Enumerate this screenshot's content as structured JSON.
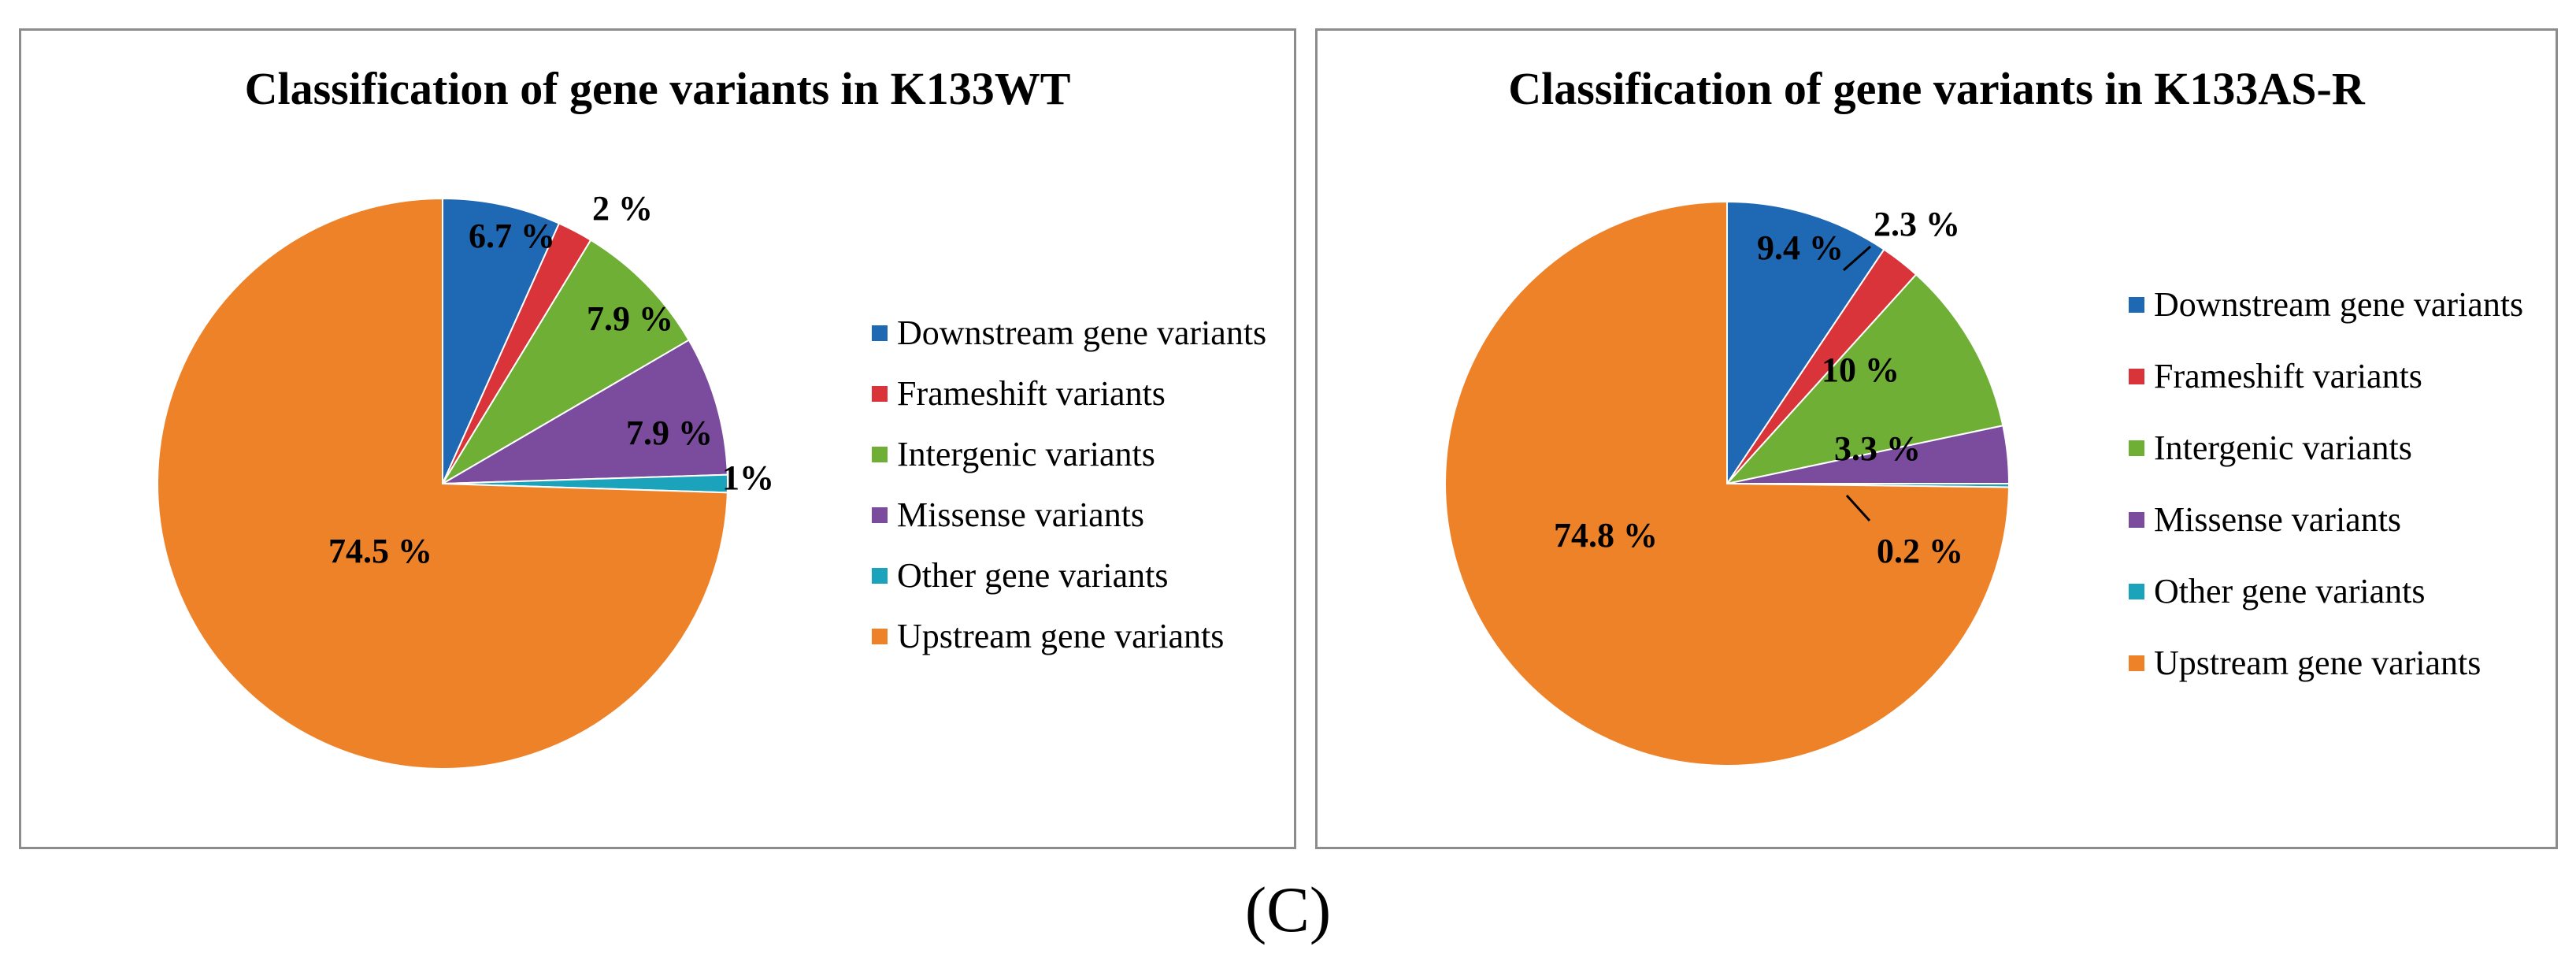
{
  "panel_label": "(C)",
  "chart_data": [
    {
      "type": "pie",
      "title": "Classification of gene variants in K133WT",
      "legend_position": "right",
      "slices": [
        {
          "name": "Downstream gene variants",
          "value": 6.7,
          "label": "6.7 %",
          "color": "#1f68b3"
        },
        {
          "name": "Frameshift variants",
          "value": 2.0,
          "label": "2 %",
          "color": "#d9343a"
        },
        {
          "name": "Intergenic variants",
          "value": 7.9,
          "label": "7.9 %",
          "color": "#6faf36"
        },
        {
          "name": "Missense variants",
          "value": 7.9,
          "label": "7.9 %",
          "color": "#7b4b9e"
        },
        {
          "name": "Other gene variants",
          "value": 1.0,
          "label": "1%",
          "color": "#1ba3bb"
        },
        {
          "name": "Upstream gene variants",
          "value": 74.5,
          "label": "74.5 %",
          "color": "#ee8229"
        }
      ]
    },
    {
      "type": "pie",
      "title": "Classification of gene variants in K133AS-R",
      "legend_position": "right",
      "slices": [
        {
          "name": "Downstream gene variants",
          "value": 9.4,
          "label": "9.4 %",
          "color": "#1f68b3"
        },
        {
          "name": "Frameshift variants",
          "value": 2.3,
          "label": "2.3 %",
          "color": "#d9343a"
        },
        {
          "name": "Intergenic variants",
          "value": 10.0,
          "label": "10 %",
          "color": "#6faf36"
        },
        {
          "name": "Missense variants",
          "value": 3.3,
          "label": "3.3 %",
          "color": "#7b4b9e"
        },
        {
          "name": "Other gene variants",
          "value": 0.2,
          "label": "0.2 %",
          "color": "#1ba3bb"
        },
        {
          "name": "Upstream gene variants",
          "value": 74.8,
          "label": "74.8 %",
          "color": "#ee8229"
        }
      ]
    }
  ]
}
